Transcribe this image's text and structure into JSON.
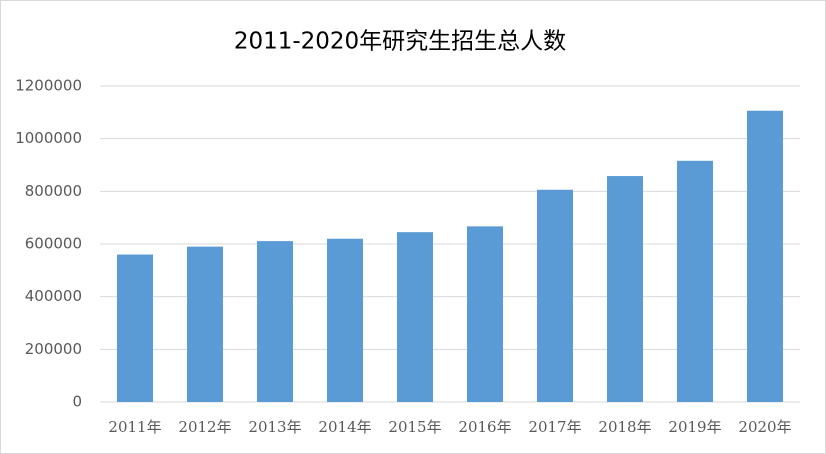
{
  "chart_data": {
    "type": "bar",
    "title": "2011-2020年研究生招生总人数",
    "categories": [
      "2011年",
      "2012年",
      "2013年",
      "2014年",
      "2015年",
      "2016年",
      "2017年",
      "2018年",
      "2019年",
      "2020年"
    ],
    "values": [
      560000,
      590000,
      611000,
      620000,
      645000,
      667000,
      806000,
      858000,
      916000,
      1106000
    ],
    "color": "#5b9bd5",
    "ylim": [
      0,
      1200000
    ],
    "yticks": [
      0,
      200000,
      400000,
      600000,
      800000,
      1000000,
      1200000
    ],
    "grid": true
  }
}
